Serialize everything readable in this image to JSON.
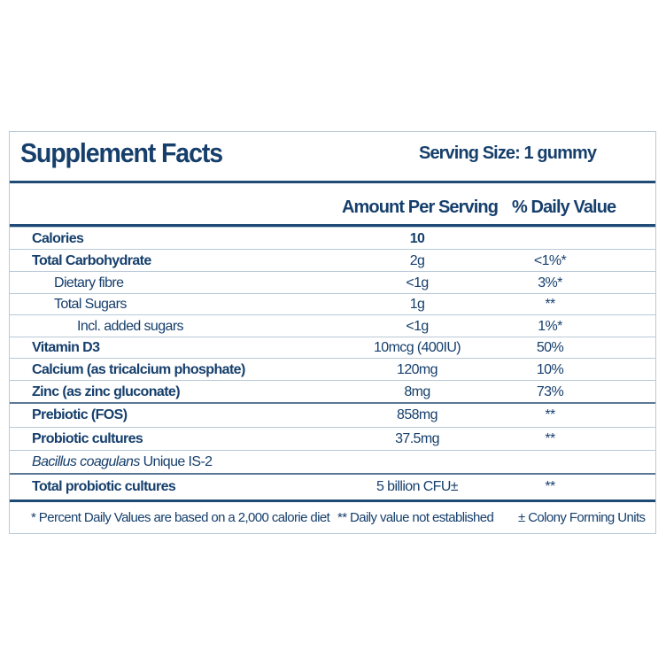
{
  "title": "Supplement Facts",
  "serving_size": "Serving Size: 1 gummy",
  "headers": {
    "amount": "Amount Per Serving",
    "dv": "% Daily Value"
  },
  "rows": [
    {
      "name": "Calories",
      "amount": "10",
      "dv": ""
    },
    {
      "name": "Total Carbohydrate",
      "amount": "2g",
      "dv": "<1%*"
    },
    {
      "name": "Dietary fibre",
      "amount": "<1g",
      "dv": "3%*"
    },
    {
      "name": "Total Sugars",
      "amount": "1g",
      "dv": "**"
    },
    {
      "name": "Incl. added sugars",
      "amount": "<1g",
      "dv": "1%*"
    },
    {
      "name": "Vitamin D3",
      "amount": "10mcg (400IU)",
      "dv": "50%"
    },
    {
      "name": "Calcium (as tricalcium phosphate)",
      "amount": "120mg",
      "dv": "10%"
    },
    {
      "name": "Zinc (as zinc gluconate)",
      "amount": "8mg",
      "dv": "73%"
    },
    {
      "name": "Prebiotic (FOS)",
      "amount": "858mg",
      "dv": "**"
    },
    {
      "name": "Probiotic cultures",
      "amount": "37.5mg",
      "dv": "**"
    },
    {
      "name_italic": "Bacillus coagulans",
      "name": " Unique IS-2",
      "amount": "",
      "dv": ""
    },
    {
      "name": "Total probiotic cultures",
      "amount": "5 billion CFU±",
      "dv": "**"
    }
  ],
  "footnotes": [
    "* Percent Daily Values are based on a 2,000 calorie diet",
    "** Daily value not established",
    "± Colony Forming Units"
  ],
  "colors": {
    "text": "#163f6c",
    "rule": "#1f4a76",
    "grid": "#b9c9d6"
  }
}
